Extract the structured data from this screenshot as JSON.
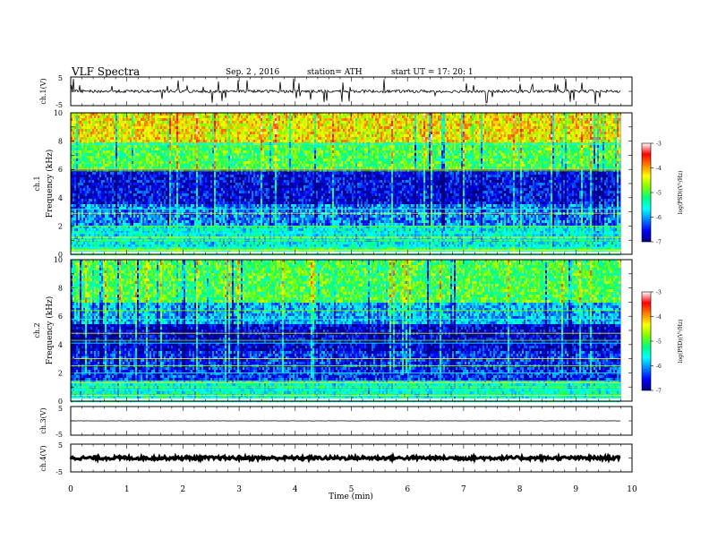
{
  "header": {
    "title": "VLF  Spectra",
    "date": "Sep. 2  , 2016",
    "station": "station= ATH",
    "start": "start  UT  =    17: 20: 1"
  },
  "chart_data": [
    {
      "type": "line",
      "panel": "ch1-waveform",
      "ylabel": "ch.1(V)",
      "ylim": [
        -5,
        5
      ],
      "y_tick_labels": [
        "5",
        "-5"
      ],
      "trace_level": 0,
      "trace_spread": 0.5,
      "spike_rate_per_min": 12,
      "color": "#000000"
    },
    {
      "type": "heatmap",
      "panel": "ch1-spectrogram",
      "ylabel_channel": "ch.1",
      "ylabel": "Frequency  (kHz)",
      "ylim": [
        0,
        10
      ],
      "y_tick_labels": [
        "0",
        "2",
        "4",
        "6",
        "8",
        "10"
      ],
      "bands_khz": [
        {
          "from": 8.0,
          "to": 10.0,
          "log_psd": -4.3,
          "label": "yellow-red"
        },
        {
          "from": 6.0,
          "to": 8.0,
          "log_psd": -5.0,
          "label": "green-yellow"
        },
        {
          "from": 3.5,
          "to": 6.0,
          "log_psd": -6.6,
          "label": "blue"
        },
        {
          "from": 2.0,
          "to": 3.5,
          "log_psd": -6.1,
          "label": "cyan-blue"
        },
        {
          "from": 0.6,
          "to": 2.0,
          "log_psd": -5.6,
          "label": "cyan-green"
        },
        {
          "from": 0.0,
          "to": 0.6,
          "log_psd": -5.2,
          "label": "green"
        }
      ],
      "horizontal_lines_khz": [
        0.3,
        0.5,
        1.0,
        1.2,
        1.5,
        2.0,
        2.9,
        3.2,
        5.9,
        6.0,
        7.8
      ],
      "colorbar": {
        "label": "log(PSD)(V²/Hz)",
        "range": [
          -7,
          -3
        ],
        "tick_labels": [
          "-3",
          "-4",
          "-5",
          "-6",
          "-7"
        ]
      }
    },
    {
      "type": "heatmap",
      "panel": "ch2-spectrogram",
      "ylabel_channel": "ch.2",
      "ylabel": "Frequency  (kHz)",
      "ylim": [
        0,
        10
      ],
      "y_tick_labels": [
        "0",
        "2",
        "4",
        "6",
        "8",
        "10"
      ],
      "bands_khz": [
        {
          "from": 7.0,
          "to": 10.0,
          "log_psd": -5.0,
          "label": "green-yellow"
        },
        {
          "from": 5.5,
          "to": 7.0,
          "log_psd": -5.9,
          "label": "cyan"
        },
        {
          "from": 3.5,
          "to": 5.5,
          "log_psd": -6.7,
          "label": "dark-blue"
        },
        {
          "from": 1.5,
          "to": 3.5,
          "log_psd": -6.4,
          "label": "blue"
        },
        {
          "from": 0.0,
          "to": 1.5,
          "log_psd": -5.5,
          "label": "cyan-green"
        }
      ],
      "horizontal_lines_khz": [
        0.4,
        0.8,
        1.0,
        1.3,
        2.0,
        2.5,
        3.0,
        4.1,
        4.3,
        4.8,
        5.8,
        6.4
      ],
      "colorbar": {
        "label": "log(PSD)(V²/Hz)",
        "range": [
          -7,
          -3
        ],
        "tick_labels": [
          "-3",
          "-4",
          "-5",
          "-6",
          "-7"
        ]
      }
    },
    {
      "type": "line",
      "panel": "ch3-waveform",
      "ylabel": "ch.3(V)",
      "ylim": [
        -5,
        5
      ],
      "y_tick_labels": [
        "5",
        "-5"
      ],
      "trace_level": 0,
      "trace_spread": 0.05,
      "color": "#000000"
    },
    {
      "type": "line",
      "panel": "ch4-waveform",
      "ylabel": "ch.4(V)",
      "ylim": [
        -5,
        5
      ],
      "y_tick_labels": [
        "5",
        "-5"
      ],
      "trace_level": 0,
      "trace_spread": 0.6,
      "color": "#000000"
    }
  ],
  "x_axis": {
    "label": "Time  (min)",
    "xlim": [
      0,
      10
    ],
    "data_end": 9.8,
    "tick_labels": [
      "0",
      "1",
      "2",
      "3",
      "4",
      "5",
      "6",
      "7",
      "8",
      "9",
      "10"
    ]
  },
  "colormap": [
    "#000080",
    "#0000ff",
    "#0080ff",
    "#00ffff",
    "#00ff80",
    "#80ff00",
    "#ffff00",
    "#ff8000",
    "#ff0000",
    "#ffffff"
  ]
}
